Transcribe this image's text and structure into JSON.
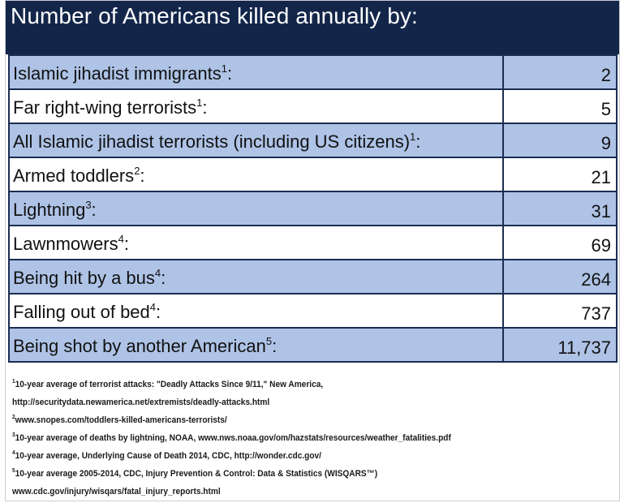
{
  "header": {
    "title": "Number of Americans killed annually by:"
  },
  "rows": [
    {
      "label": "Islamic jihadist immigrants",
      "ref": "1",
      "suffix": ":",
      "value": "2",
      "shade": true
    },
    {
      "label": "Far right-wing terrorists",
      "ref": "1",
      "suffix": ":",
      "value": "5",
      "shade": false
    },
    {
      "label": "All Islamic jihadist terrorists (including US citizens)",
      "ref": "1",
      "suffix": ":",
      "value": "9",
      "shade": true
    },
    {
      "label": "Armed toddlers",
      "ref": "2",
      "suffix": ":",
      "value": "21",
      "shade": false
    },
    {
      "label": "Lightning",
      "ref": "3",
      "suffix": ":",
      "value": "31",
      "shade": true
    },
    {
      "label": "Lawnmowers",
      "ref": "4",
      "suffix": ":",
      "value": "69",
      "shade": false
    },
    {
      "label": "Being hit by a bus",
      "ref": "4",
      "suffix": ":",
      "value": "264",
      "shade": true
    },
    {
      "label": "Falling out of bed",
      "ref": "4",
      "suffix": ":",
      "value": "737",
      "shade": false
    },
    {
      "label": "Being shot by another American",
      "ref": "5",
      "suffix": ":",
      "value": "11,737",
      "shade": true
    }
  ],
  "notes": [
    {
      "ref": "1",
      "text": "10-year average of terrorist attacks: \"Deadly Attacks Since 9/11,\" New America,"
    },
    {
      "ref": "",
      "text": "http://securitydata.newamerica.net/extremists/deadly-attacks.html"
    },
    {
      "ref": "2",
      "text": "www.snopes.com/toddlers-killed-americans-terrorists/"
    },
    {
      "ref": "3",
      "text": "10-year average of deaths by lightning, NOAA, www.nws.noaa.gov/om/hazstats/resources/weather_fatalities.pdf"
    },
    {
      "ref": "4",
      "text": "10-year average, Underlying Cause of Death 2014, CDC, http://wonder.cdc.gov/"
    },
    {
      "ref": "5",
      "text": "10-year average 2005-2014, CDC, Injury Prevention & Control: Data & Statistics (WISQARS™)"
    },
    {
      "ref": "",
      "text": "www.cdc.gov/injury/wisqars/fatal_injury_reports.html"
    }
  ]
}
